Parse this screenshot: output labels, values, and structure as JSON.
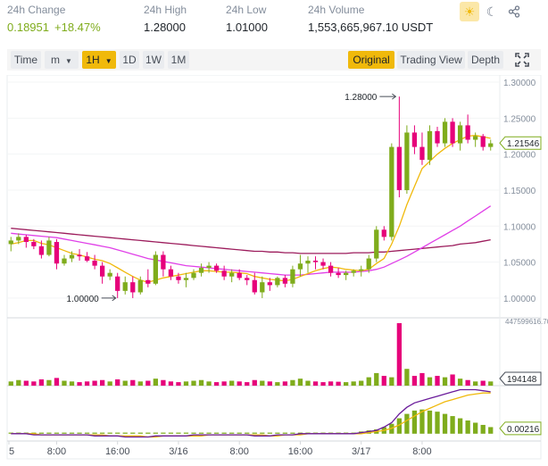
{
  "stats": {
    "change": {
      "label": "24h Change",
      "value": "0.18951",
      "percent": "+18.47%"
    },
    "high": {
      "label": "24h High",
      "value": "1.28000"
    },
    "low": {
      "label": "24h Low",
      "value": "1.01000"
    },
    "volume": {
      "label": "24h Volume",
      "value": "1,553,665,967.10 USDT"
    }
  },
  "theme": {
    "sun": "☀",
    "moon": "☾",
    "share": "⋖"
  },
  "icons": {
    "theme_light": "sun-icon",
    "theme_dark": "moon-icon",
    "share": "share-icon",
    "fullscreen": "fullscreen-icon"
  },
  "toolbar": {
    "time": "Time",
    "m": "m",
    "h1": "1H",
    "d1": "1D",
    "w1": "1W",
    "mo1": "1M",
    "original": "Original",
    "tradingview": "Trading View",
    "depth": "Depth"
  },
  "colors": {
    "up": "#7fac1c",
    "down": "#e6007a",
    "ma7": "#f0b90b",
    "ma25": "#e040e8",
    "ma99": "#9c1c5c",
    "accent": "#f0b90b"
  },
  "chart_data": {
    "type": "candlestick",
    "price_axis": {
      "ticks": [
        "1.30000",
        "1.25000",
        "1.20000",
        "1.15000",
        "1.10000",
        "1.05000",
        "1.00000"
      ],
      "ylim": [
        0.985,
        1.305
      ]
    },
    "current_price": "1.21546",
    "annotations": {
      "high": "1.28000",
      "low": "1.00000"
    },
    "x_ticks": [
      "5",
      "8:00",
      "16:00",
      "3/16",
      "8:00",
      "16:00",
      "3/17",
      "8:00"
    ],
    "candles": [
      [
        1.075,
        1.085,
        1.065,
        1.08
      ],
      [
        1.08,
        1.09,
        1.075,
        1.085
      ],
      [
        1.085,
        1.088,
        1.07,
        1.078
      ],
      [
        1.078,
        1.082,
        1.068,
        1.072
      ],
      [
        1.072,
        1.08,
        1.055,
        1.06
      ],
      [
        1.06,
        1.085,
        1.058,
        1.08
      ],
      [
        1.078,
        1.082,
        1.04,
        1.048
      ],
      [
        1.048,
        1.06,
        1.045,
        1.055
      ],
      [
        1.055,
        1.065,
        1.05,
        1.06
      ],
      [
        1.06,
        1.068,
        1.052,
        1.058
      ],
      [
        1.058,
        1.064,
        1.05,
        1.052
      ],
      [
        1.052,
        1.06,
        1.04,
        1.045
      ],
      [
        1.045,
        1.05,
        1.02,
        1.03
      ],
      [
        1.03,
        1.04,
        1.025,
        1.035
      ],
      [
        1.03,
        1.035,
        1.0,
        1.01
      ],
      [
        1.01,
        1.03,
        1.005,
        1.022
      ],
      [
        1.022,
        1.03,
        1.0,
        1.008
      ],
      [
        1.008,
        1.03,
        1.005,
        1.025
      ],
      [
        1.025,
        1.04,
        1.015,
        1.02
      ],
      [
        1.02,
        1.065,
        1.018,
        1.06
      ],
      [
        1.06,
        1.065,
        1.03,
        1.04
      ],
      [
        1.04,
        1.045,
        1.025,
        1.03
      ],
      [
        1.03,
        1.035,
        1.02,
        1.025
      ],
      [
        1.025,
        1.035,
        1.015,
        1.028
      ],
      [
        1.028,
        1.04,
        1.025,
        1.035
      ],
      [
        1.035,
        1.048,
        1.03,
        1.042
      ],
      [
        1.042,
        1.05,
        1.035,
        1.045
      ],
      [
        1.045,
        1.048,
        1.035,
        1.038
      ],
      [
        1.038,
        1.045,
        1.025,
        1.03
      ],
      [
        1.03,
        1.04,
        1.022,
        1.035
      ],
      [
        1.035,
        1.04,
        1.025,
        1.028
      ],
      [
        1.028,
        1.032,
        1.018,
        1.025
      ],
      [
        1.025,
        1.035,
        1.005,
        1.008
      ],
      [
        1.008,
        1.03,
        1.0,
        1.022
      ],
      [
        1.022,
        1.028,
        1.01,
        1.018
      ],
      [
        1.018,
        1.03,
        1.015,
        1.028
      ],
      [
        1.028,
        1.032,
        1.015,
        1.02
      ],
      [
        1.02,
        1.045,
        1.015,
        1.04
      ],
      [
        1.04,
        1.06,
        1.03,
        1.048
      ],
      [
        1.048,
        1.058,
        1.035,
        1.052
      ],
      [
        1.052,
        1.058,
        1.04,
        1.05
      ],
      [
        1.05,
        1.055,
        1.04,
        1.045
      ],
      [
        1.045,
        1.05,
        1.03,
        1.035
      ],
      [
        1.035,
        1.042,
        1.028,
        1.032
      ],
      [
        1.032,
        1.038,
        1.025,
        1.035
      ],
      [
        1.035,
        1.04,
        1.03,
        1.038
      ],
      [
        1.038,
        1.045,
        1.03,
        1.04
      ],
      [
        1.04,
        1.06,
        1.035,
        1.055
      ],
      [
        1.055,
        1.1,
        1.05,
        1.095
      ],
      [
        1.095,
        1.1,
        1.08,
        1.085
      ],
      [
        1.085,
        1.215,
        1.08,
        1.21
      ],
      [
        1.21,
        1.28,
        1.14,
        1.15
      ],
      [
        1.15,
        1.24,
        1.145,
        1.23
      ],
      [
        1.23,
        1.24,
        1.2,
        1.21
      ],
      [
        1.21,
        1.23,
        1.185,
        1.192
      ],
      [
        1.192,
        1.24,
        1.185,
        1.232
      ],
      [
        1.232,
        1.238,
        1.21,
        1.215
      ],
      [
        1.215,
        1.25,
        1.21,
        1.245
      ],
      [
        1.245,
        1.25,
        1.21,
        1.215
      ],
      [
        1.215,
        1.245,
        1.205,
        1.24
      ],
      [
        1.24,
        1.255,
        1.215,
        1.22
      ],
      [
        1.22,
        1.23,
        1.21,
        1.225
      ],
      [
        1.225,
        1.228,
        1.205,
        1.21
      ],
      [
        1.21,
        1.22,
        1.205,
        1.215
      ]
    ],
    "ma7": [
      1.075,
      1.077,
      1.08,
      1.08,
      1.076,
      1.074,
      1.07,
      1.066,
      1.062,
      1.06,
      1.057,
      1.054,
      1.052,
      1.048,
      1.042,
      1.036,
      1.03,
      1.025,
      1.022,
      1.025,
      1.028,
      1.03,
      1.032,
      1.034,
      1.036,
      1.038,
      1.038,
      1.037,
      1.036,
      1.036,
      1.035,
      1.034,
      1.03,
      1.028,
      1.026,
      1.025,
      1.024,
      1.026,
      1.03,
      1.034,
      1.038,
      1.041,
      1.043,
      1.042,
      1.04,
      1.039,
      1.038,
      1.04,
      1.048,
      1.055,
      1.075,
      1.1,
      1.13,
      1.155,
      1.18,
      1.19,
      1.2,
      1.208,
      1.215,
      1.22,
      1.225,
      1.226,
      1.224,
      1.222
    ],
    "ma25": [
      1.09,
      1.089,
      1.088,
      1.087,
      1.086,
      1.085,
      1.084,
      1.082,
      1.08,
      1.078,
      1.076,
      1.074,
      1.072,
      1.07,
      1.067,
      1.064,
      1.061,
      1.058,
      1.055,
      1.053,
      1.051,
      1.049,
      1.047,
      1.045,
      1.044,
      1.043,
      1.042,
      1.041,
      1.04,
      1.039,
      1.038,
      1.037,
      1.036,
      1.035,
      1.034,
      1.033,
      1.032,
      1.032,
      1.032,
      1.033,
      1.034,
      1.035,
      1.036,
      1.036,
      1.036,
      1.036,
      1.037,
      1.038,
      1.04,
      1.043,
      1.048,
      1.053,
      1.058,
      1.064,
      1.07,
      1.076,
      1.082,
      1.088,
      1.094,
      1.1,
      1.107,
      1.114,
      1.121,
      1.128
    ],
    "ma99": [
      1.097,
      1.096,
      1.095,
      1.094,
      1.093,
      1.092,
      1.091,
      1.09,
      1.089,
      1.088,
      1.087,
      1.086,
      1.085,
      1.084,
      1.083,
      1.082,
      1.081,
      1.08,
      1.079,
      1.078,
      1.077,
      1.076,
      1.075,
      1.074,
      1.073,
      1.072,
      1.071,
      1.07,
      1.069,
      1.068,
      1.067,
      1.066,
      1.065,
      1.065,
      1.064,
      1.064,
      1.063,
      1.063,
      1.062,
      1.062,
      1.062,
      1.062,
      1.062,
      1.062,
      1.062,
      1.063,
      1.063,
      1.063,
      1.064,
      1.064,
      1.065,
      1.066,
      1.067,
      1.068,
      1.069,
      1.07,
      1.071,
      1.072,
      1.073,
      1.075,
      1.076,
      1.077,
      1.079,
      1.081
    ],
    "volume": {
      "label_top": "447599616.70",
      "last": "194148",
      "max": 447599616.7,
      "values": [
        30,
        40,
        35,
        30,
        45,
        40,
        55,
        35,
        30,
        25,
        30,
        35,
        40,
        30,
        45,
        35,
        40,
        30,
        35,
        50,
        40,
        30,
        25,
        30,
        35,
        40,
        30,
        25,
        30,
        35,
        30,
        25,
        40,
        35,
        30,
        25,
        30,
        40,
        50,
        35,
        30,
        25,
        30,
        28,
        25,
        30,
        35,
        60,
        90,
        70,
        60,
        447,
        120,
        70,
        90,
        60,
        70,
        60,
        80,
        50,
        40,
        30,
        35,
        30
      ]
    },
    "macd": {
      "last": "0.00216",
      "hist": [
        1,
        1,
        1,
        1,
        1,
        1,
        1,
        1,
        1,
        1,
        1,
        1,
        1,
        1,
        1,
        1,
        1,
        1,
        1,
        1,
        1,
        1,
        1,
        1,
        1,
        1,
        1,
        1,
        1,
        1,
        1,
        1,
        1,
        1,
        1,
        1,
        1,
        1,
        1,
        1,
        1,
        1,
        1,
        1,
        1,
        1,
        2,
        3,
        4,
        6,
        9,
        14,
        18,
        21,
        22,
        21,
        20,
        18,
        16,
        14,
        12,
        10,
        8,
        6
      ],
      "dif": [
        0,
        0,
        0,
        -1,
        -1,
        -1,
        -1,
        -1,
        -1,
        -1,
        -1,
        -2,
        -2,
        -2,
        -2,
        -3,
        -3,
        -3,
        -3,
        -2,
        -2,
        -2,
        -2,
        -2,
        -1,
        -1,
        -1,
        -1,
        -1,
        -1,
        -1,
        -1,
        -2,
        -2,
        -2,
        -1,
        -1,
        -1,
        0,
        0,
        0,
        0,
        0,
        0,
        0,
        0,
        1,
        2,
        3,
        6,
        10,
        18,
        24,
        28,
        30,
        32,
        34,
        36,
        38,
        40,
        40,
        40,
        39,
        38
      ],
      "dea": [
        0,
        0,
        0,
        0,
        -1,
        -1,
        -1,
        -1,
        -1,
        -1,
        -1,
        -1,
        -1,
        -2,
        -2,
        -2,
        -2,
        -2,
        -3,
        -3,
        -2,
        -2,
        -2,
        -2,
        -2,
        -2,
        -1,
        -1,
        -1,
        -1,
        -1,
        -1,
        -1,
        -1,
        -2,
        -2,
        -1,
        -1,
        -1,
        0,
        0,
        0,
        0,
        0,
        0,
        0,
        0,
        1,
        2,
        3,
        5,
        8,
        12,
        16,
        20,
        23,
        26,
        29,
        31,
        33,
        35,
        36,
        37,
        37
      ],
      "range": [
        -5,
        42
      ]
    }
  }
}
